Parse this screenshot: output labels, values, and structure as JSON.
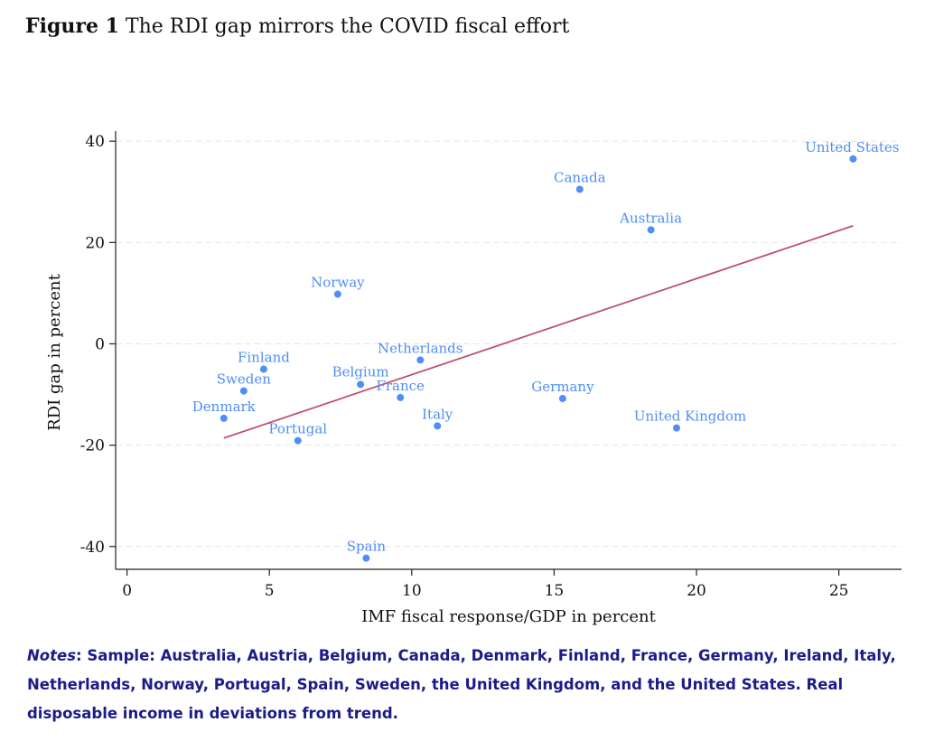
{
  "figure": {
    "label": "Figure 1",
    "title": "The RDI gap mirrors the COVID fiscal effort"
  },
  "notes": {
    "label": "Notes",
    "text": ": Sample: Australia, Austria, Belgium, Canada, Denmark, Finland, France, Germany, Ireland, Italy, Netherlands, Norway, Portugal, Spain, Sweden, the United Kingdom, and the United States. Real disposable income in deviations from trend."
  },
  "colors": {
    "points": "#4f8ef7",
    "labels": "#4f8ef7",
    "fit_line": "#c05070",
    "axis": "#222222",
    "grid": "#e6e6e6",
    "notes": "#1b1b8a"
  },
  "chart_data": {
    "type": "scatter",
    "xlabel": "IMF fiscal response/GDP in percent",
    "ylabel": "RDI gap in percent",
    "xlim": [
      -0.4,
      27.2
    ],
    "ylim": [
      -44.5,
      42
    ],
    "xticks": [
      0,
      5,
      10,
      15,
      20,
      25
    ],
    "yticks": [
      -40,
      -20,
      0,
      20,
      40
    ],
    "grid": true,
    "points": [
      {
        "name": "United States",
        "x": 25.5,
        "y": 36.5
      },
      {
        "name": "Canada",
        "x": 15.9,
        "y": 30.5
      },
      {
        "name": "Australia",
        "x": 18.4,
        "y": 22.5
      },
      {
        "name": "Norway",
        "x": 7.4,
        "y": 9.8
      },
      {
        "name": "Netherlands",
        "x": 10.3,
        "y": -3.2
      },
      {
        "name": "Finland",
        "x": 4.8,
        "y": -5.0
      },
      {
        "name": "Belgium",
        "x": 8.2,
        "y": -8.0
      },
      {
        "name": "Sweden",
        "x": 4.1,
        "y": -9.3
      },
      {
        "name": "France",
        "x": 9.6,
        "y": -10.6
      },
      {
        "name": "Germany",
        "x": 15.3,
        "y": -10.8
      },
      {
        "name": "Denmark",
        "x": 3.4,
        "y": -14.7
      },
      {
        "name": "Italy",
        "x": 10.9,
        "y": -16.2
      },
      {
        "name": "United Kingdom",
        "x": 19.3,
        "y": -16.6
      },
      {
        "name": "Portugal",
        "x": 6.0,
        "y": -19.1
      },
      {
        "name": "Spain",
        "x": 8.4,
        "y": -42.3
      }
    ],
    "fit_line": {
      "x": [
        3.4,
        25.5
      ],
      "y": [
        -18.6,
        23.3
      ]
    }
  }
}
